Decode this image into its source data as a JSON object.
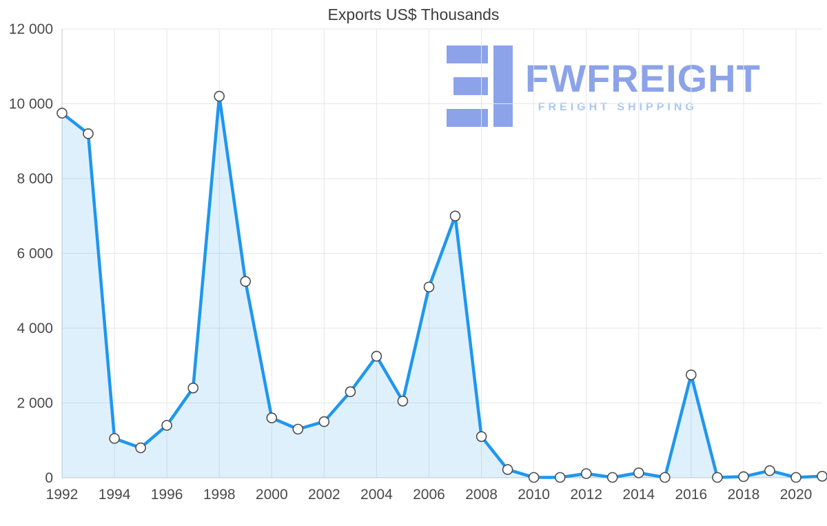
{
  "chart_data": {
    "type": "line",
    "title": "Exports US$ Thousands",
    "x": [
      1992,
      1993,
      1994,
      1995,
      1996,
      1997,
      1998,
      1999,
      2000,
      2001,
      2002,
      2003,
      2004,
      2005,
      2006,
      2007,
      2008,
      2009,
      2010,
      2011,
      2012,
      2013,
      2014,
      2015,
      2016,
      2017,
      2018,
      2019,
      2020,
      2021
    ],
    "values": [
      9750,
      9200,
      1050,
      800,
      1400,
      2400,
      10200,
      5250,
      1600,
      1300,
      1500,
      2300,
      3250,
      2050,
      5100,
      7000,
      1100,
      220,
      10,
      10,
      110,
      10,
      130,
      10,
      2750,
      10,
      30,
      190,
      10,
      40
    ],
    "xlim": [
      1992,
      2021
    ],
    "ylim": [
      0,
      12000
    ],
    "xticks": [
      1992,
      1994,
      1996,
      1998,
      2000,
      2002,
      2004,
      2006,
      2008,
      2010,
      2012,
      2014,
      2016,
      2018,
      2020
    ],
    "xtick_labels": [
      "1992",
      "1994",
      "1996",
      "1998",
      "2000",
      "2002",
      "2004",
      "2006",
      "2008",
      "2010",
      "2012",
      "2014",
      "2016",
      "2018",
      "2020"
    ],
    "yticks": [
      0,
      2000,
      4000,
      6000,
      8000,
      10000,
      12000
    ],
    "ytick_labels": [
      "0",
      "2 000",
      "4 000",
      "6 000",
      "8 000",
      "10 000",
      "12 000"
    ],
    "grid": true,
    "legend": "none",
    "line_color": "#1f97ee",
    "fill_color": "rgba(31,151,238,0.14)",
    "marker_fill": "#ffffff",
    "marker_stroke": "#4d4d4d"
  },
  "watermark": {
    "name": "FWFREIGHT",
    "subtitle": "FREIGHT SHIPPING",
    "brand_color": "#8ca3e9",
    "subtitle_color": "#a9c6f2"
  }
}
